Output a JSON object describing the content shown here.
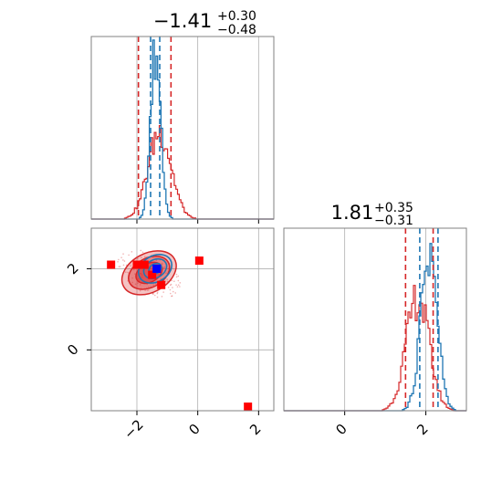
{
  "chart_data": {
    "type": "corner",
    "parameters": [
      {
        "title_main": "1.41",
        "title_sign": "−",
        "title_upper": "+0.30",
        "title_lower": "−0.48",
        "range": [
          -3.5,
          2.5
        ],
        "ticks": [
          -2,
          0,
          2
        ],
        "tick_labels": [
          "−2",
          "0",
          "2"
        ]
      },
      {
        "title_main": "1.81",
        "title_sign": "",
        "title_upper": "+0.35",
        "title_lower": "−0.31",
        "range": [
          -1.5,
          3.0
        ],
        "ticks": [
          0,
          2
        ],
        "tick_labels": [
          "0",
          "2"
        ]
      }
    ],
    "colors": {
      "blue": "#1f77b4",
      "red": "#d62728",
      "grid": "#b0b0b0",
      "axis": "#808080"
    },
    "quantile_lines": {
      "blue": {
        "p0": [
          -1.55,
          -1.25
        ],
        "p1": [
          1.85,
          2.3
        ]
      },
      "red": {
        "p0": [
          -1.95,
          -0.88
        ],
        "p1": [
          1.5,
          2.18
        ]
      }
    },
    "hist_blue_p0": {
      "center": -1.38,
      "sigma": 0.17,
      "peak": 0.92
    },
    "hist_red_p0": {
      "center": -1.25,
      "sigma": 0.38,
      "peak": 0.48
    },
    "hist_blue_p1": {
      "center": 2.08,
      "sigma": 0.2,
      "peak": 0.88
    },
    "hist_red_p1": {
      "center": 1.8,
      "sigma": 0.28,
      "peak": 0.62
    },
    "markers_red": [
      {
        "x": -2.85,
        "y": 2.1
      },
      {
        "x": -2.0,
        "y": 2.1
      },
      {
        "x": -1.75,
        "y": 2.1
      },
      {
        "x": -1.5,
        "y": 1.85
      },
      {
        "x": -1.2,
        "y": 1.6
      },
      {
        "x": 0.05,
        "y": 2.2
      },
      {
        "x": 1.65,
        "y": -1.4
      }
    ],
    "marker_blue": {
      "x": -1.35,
      "y": 2.0
    },
    "contours_red": [
      {
        "cx": -1.6,
        "cy": 1.9,
        "rx": 0.95,
        "ry": 0.48,
        "rot": -28
      },
      {
        "cx": -1.6,
        "cy": 1.9,
        "rx": 0.72,
        "ry": 0.36,
        "rot": -28
      },
      {
        "cx": -1.6,
        "cy": 1.9,
        "rx": 0.46,
        "ry": 0.23,
        "rot": -28
      }
    ],
    "contours_blue": [
      {
        "cx": -1.4,
        "cy": 2.0,
        "rx": 0.58,
        "ry": 0.32,
        "rot": -30
      },
      {
        "cx": -1.4,
        "cy": 2.0,
        "rx": 0.4,
        "ry": 0.22,
        "rot": -30
      },
      {
        "cx": -1.4,
        "cy": 2.0,
        "rx": 0.22,
        "ry": 0.12,
        "rot": -30
      }
    ]
  }
}
